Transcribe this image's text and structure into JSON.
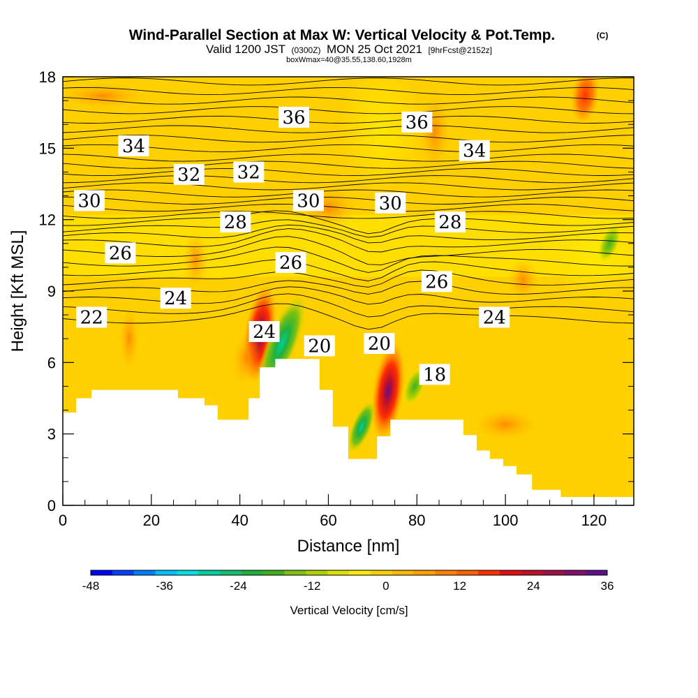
{
  "header": {
    "title_main": "Wind-Parallel Section at Max W: Vertical Velocity & Pot.Temp.",
    "title_mark": "(C)",
    "valid_prefix": "Valid 1200 JST",
    "valid_zulu": "(0300Z)",
    "valid_date": "MON 25 Oct 2021",
    "forecast_info": "[9hrFcst@2152z]",
    "box_info": "boxWmax=40@35.55,138.60,1928m"
  },
  "chart_data": {
    "type": "heatmap",
    "title": "Wind-Parallel Section at Max W: Vertical Velocity & Pot.Temp.",
    "xlabel": "Distance [nm]",
    "ylabel": "Height [Kft MSL]",
    "xlim": [
      0,
      129
    ],
    "ylim": [
      0,
      18
    ],
    "x_ticks": [
      0,
      20,
      40,
      60,
      80,
      100,
      120
    ],
    "y_ticks": [
      0,
      3,
      6,
      9,
      12,
      15,
      18
    ],
    "colorbar": {
      "label": "Vertical Velocity [cm/s]",
      "ticks": [
        -48,
        -36,
        -24,
        -12,
        0,
        12,
        24,
        36
      ],
      "min": -48,
      "max": 36,
      "step": 4,
      "colors": [
        "#0000ff",
        "#0040ff",
        "#0080ff",
        "#00c0ff",
        "#00e0e0",
        "#00d0a0",
        "#10c070",
        "#20b040",
        "#40b020",
        "#80c010",
        "#b0d000",
        "#e0e000",
        "#ffea00",
        "#ffd000",
        "#ffb800",
        "#ffa000",
        "#ff8000",
        "#ff6000",
        "#ff3000",
        "#e01010",
        "#c0102a",
        "#a0104a",
        "#80106a",
        "#60108a"
      ]
    },
    "theta_contour_labels": [
      {
        "text": "36",
        "x": 52.2,
        "y": 16.3
      },
      {
        "text": "36",
        "x": 80.0,
        "y": 16.1
      },
      {
        "text": "34",
        "x": 16.0,
        "y": 15.1
      },
      {
        "text": "34",
        "x": 93.0,
        "y": 14.9
      },
      {
        "text": "32",
        "x": 28.5,
        "y": 13.9
      },
      {
        "text": "32",
        "x": 42.0,
        "y": 14.0
      },
      {
        "text": "30",
        "x": 6.0,
        "y": 12.8
      },
      {
        "text": "30",
        "x": 55.5,
        "y": 12.8
      },
      {
        "text": "30",
        "x": 74.0,
        "y": 12.7
      },
      {
        "text": "28",
        "x": 39.0,
        "y": 11.9
      },
      {
        "text": "28",
        "x": 87.5,
        "y": 11.9
      },
      {
        "text": "26",
        "x": 13.0,
        "y": 10.6
      },
      {
        "text": "26",
        "x": 51.5,
        "y": 10.2
      },
      {
        "text": "26",
        "x": 84.5,
        "y": 9.4
      },
      {
        "text": "24",
        "x": 25.5,
        "y": 8.7
      },
      {
        "text": "24",
        "x": 97.5,
        "y": 7.9
      },
      {
        "text": "24",
        "x": 45.5,
        "y": 7.3
      },
      {
        "text": "22",
        "x": 6.5,
        "y": 7.9
      },
      {
        "text": "20",
        "x": 58.0,
        "y": 6.7
      },
      {
        "text": "20",
        "x": 71.5,
        "y": 6.8
      },
      {
        "text": "18",
        "x": 84.0,
        "y": 5.5
      }
    ],
    "terrain": [
      [
        0,
        3.9
      ],
      [
        3,
        3.9
      ],
      [
        3,
        4.5
      ],
      [
        6.5,
        4.5
      ],
      [
        6.5,
        4.85
      ],
      [
        26,
        4.85
      ],
      [
        26,
        4.5
      ],
      [
        32,
        4.5
      ],
      [
        32,
        4.2
      ],
      [
        35,
        4.2
      ],
      [
        35,
        3.6
      ],
      [
        42,
        3.6
      ],
      [
        42,
        4.5
      ],
      [
        44.5,
        4.5
      ],
      [
        44.5,
        5.8
      ],
      [
        48,
        5.8
      ],
      [
        48,
        6.15
      ],
      [
        58,
        6.15
      ],
      [
        58,
        4.85
      ],
      [
        61,
        4.85
      ],
      [
        61,
        3.3
      ],
      [
        64.5,
        3.3
      ],
      [
        64.5,
        1.95
      ],
      [
        71,
        1.95
      ],
      [
        71,
        2.9
      ],
      [
        74,
        2.9
      ],
      [
        74,
        3.6
      ],
      [
        90.5,
        3.6
      ],
      [
        90.5,
        2.95
      ],
      [
        93.5,
        2.95
      ],
      [
        93.5,
        2.3
      ],
      [
        96.5,
        2.3
      ],
      [
        96.5,
        1.95
      ],
      [
        99.5,
        1.95
      ],
      [
        99.5,
        1.65
      ],
      [
        102.5,
        1.65
      ],
      [
        102.5,
        1.3
      ],
      [
        106,
        1.3
      ],
      [
        106,
        0.65
      ],
      [
        112.5,
        0.65
      ],
      [
        112.5,
        0.35
      ],
      [
        129,
        0.35
      ],
      [
        129,
        0
      ]
    ],
    "updraft_cores": [
      {
        "x": 44.5,
        "y": 7.2,
        "w": 33
      },
      {
        "x": 73.5,
        "y": 4.8,
        "w": 36
      },
      {
        "x": 41.5,
        "y": 6.2,
        "w": 18
      },
      {
        "x": 118,
        "y": 17.2,
        "w": 22
      }
    ],
    "downdraft_cores": [
      {
        "x": 49.5,
        "y": 6.8,
        "w": -24
      },
      {
        "x": 67.5,
        "y": 3.3,
        "w": -14
      },
      {
        "x": 79.5,
        "y": 5.0,
        "w": -8
      },
      {
        "x": 123.5,
        "y": 11.0,
        "w": -6
      }
    ]
  }
}
